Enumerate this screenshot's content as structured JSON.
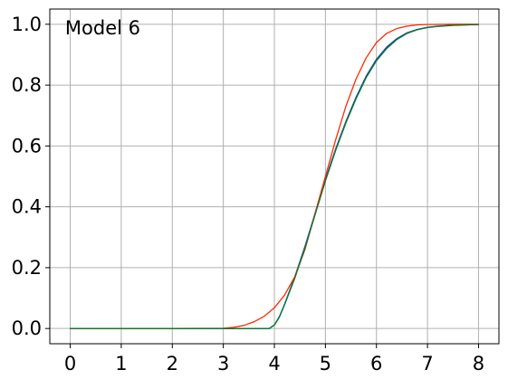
{
  "chart_data": {
    "type": "line",
    "annotation": "Model 6",
    "xlim": [
      -0.4,
      8.4
    ],
    "ylim": [
      -0.05,
      1.05
    ],
    "xticks": [
      0,
      1,
      2,
      3,
      4,
      5,
      6,
      7,
      8
    ],
    "xtick_labels": [
      "0",
      "1",
      "2",
      "3",
      "4",
      "5",
      "6",
      "7",
      "8"
    ],
    "yticks": [
      0.0,
      0.2,
      0.4,
      0.6,
      0.8,
      1.0
    ],
    "ytick_labels": [
      "0.0",
      "0.2",
      "0.4",
      "0.6",
      "0.8",
      "1.0"
    ],
    "grid": true,
    "series": [
      {
        "color": "#1f3fbf",
        "x": [
          0,
          1,
          2,
          3,
          3.5,
          3.9,
          4.0,
          4.1,
          4.2,
          4.4,
          4.6,
          4.8,
          5.0,
          5.2,
          5.4,
          5.6,
          5.8,
          6.0,
          6.2,
          6.4,
          6.6,
          6.8,
          7.0,
          7.2,
          7.5,
          8.0
        ],
        "y": [
          0,
          0,
          0,
          0,
          0,
          0.0,
          0.012,
          0.04,
          0.08,
          0.17,
          0.27,
          0.38,
          0.49,
          0.59,
          0.68,
          0.76,
          0.83,
          0.885,
          0.925,
          0.953,
          0.972,
          0.983,
          0.99,
          0.994,
          0.997,
          0.999
        ]
      },
      {
        "color": "#ff2a00",
        "x": [
          0,
          1,
          2,
          3,
          3.2,
          3.4,
          3.6,
          3.8,
          4.0,
          4.2,
          4.4,
          4.6,
          4.8,
          5.0,
          5.2,
          5.4,
          5.6,
          5.8,
          6.0,
          6.2,
          6.4,
          6.6,
          6.8,
          7.0,
          7.5,
          8.0
        ],
        "y": [
          0,
          0,
          0,
          0.001,
          0.004,
          0.01,
          0.022,
          0.04,
          0.068,
          0.11,
          0.17,
          0.26,
          0.38,
          0.5,
          0.62,
          0.73,
          0.82,
          0.89,
          0.94,
          0.97,
          0.986,
          0.994,
          0.998,
          0.999,
          1.0,
          1.0
        ]
      },
      {
        "color": "#0a7a2a",
        "x": [
          0,
          1,
          2,
          3,
          3.5,
          3.9,
          4.0,
          4.1,
          4.2,
          4.4,
          4.6,
          4.8,
          5.0,
          5.2,
          5.4,
          5.6,
          5.8,
          6.0,
          6.2,
          6.4,
          6.6,
          6.8,
          7.0,
          7.2,
          7.5,
          8.0
        ],
        "y": [
          0,
          0,
          0,
          0,
          0,
          0.0,
          0.011,
          0.038,
          0.078,
          0.165,
          0.265,
          0.375,
          0.485,
          0.585,
          0.675,
          0.755,
          0.825,
          0.88,
          0.92,
          0.95,
          0.97,
          0.982,
          0.989,
          0.993,
          0.996,
          0.999
        ]
      }
    ]
  }
}
